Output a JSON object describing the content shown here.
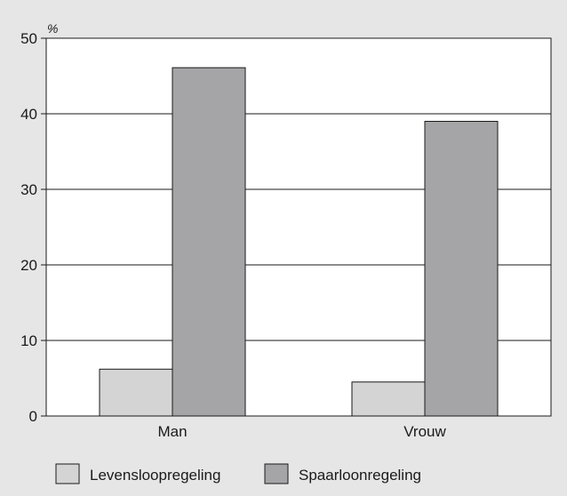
{
  "chart_data": {
    "type": "bar",
    "ylabel": "%",
    "ylim": [
      0,
      50
    ],
    "yticks": [
      0,
      10,
      20,
      30,
      40,
      50
    ],
    "grid": true,
    "legend_position": "bottom-left",
    "categories": [
      "Man",
      "Vrouw"
    ],
    "series": [
      {
        "name": "Levensloopregeling",
        "values": [
          6.2,
          4.5
        ],
        "color": "#d4d4d5"
      },
      {
        "name": "Spaarloonregeling",
        "values": [
          46.1,
          39.0
        ],
        "color": "#a5a5a8"
      }
    ]
  }
}
